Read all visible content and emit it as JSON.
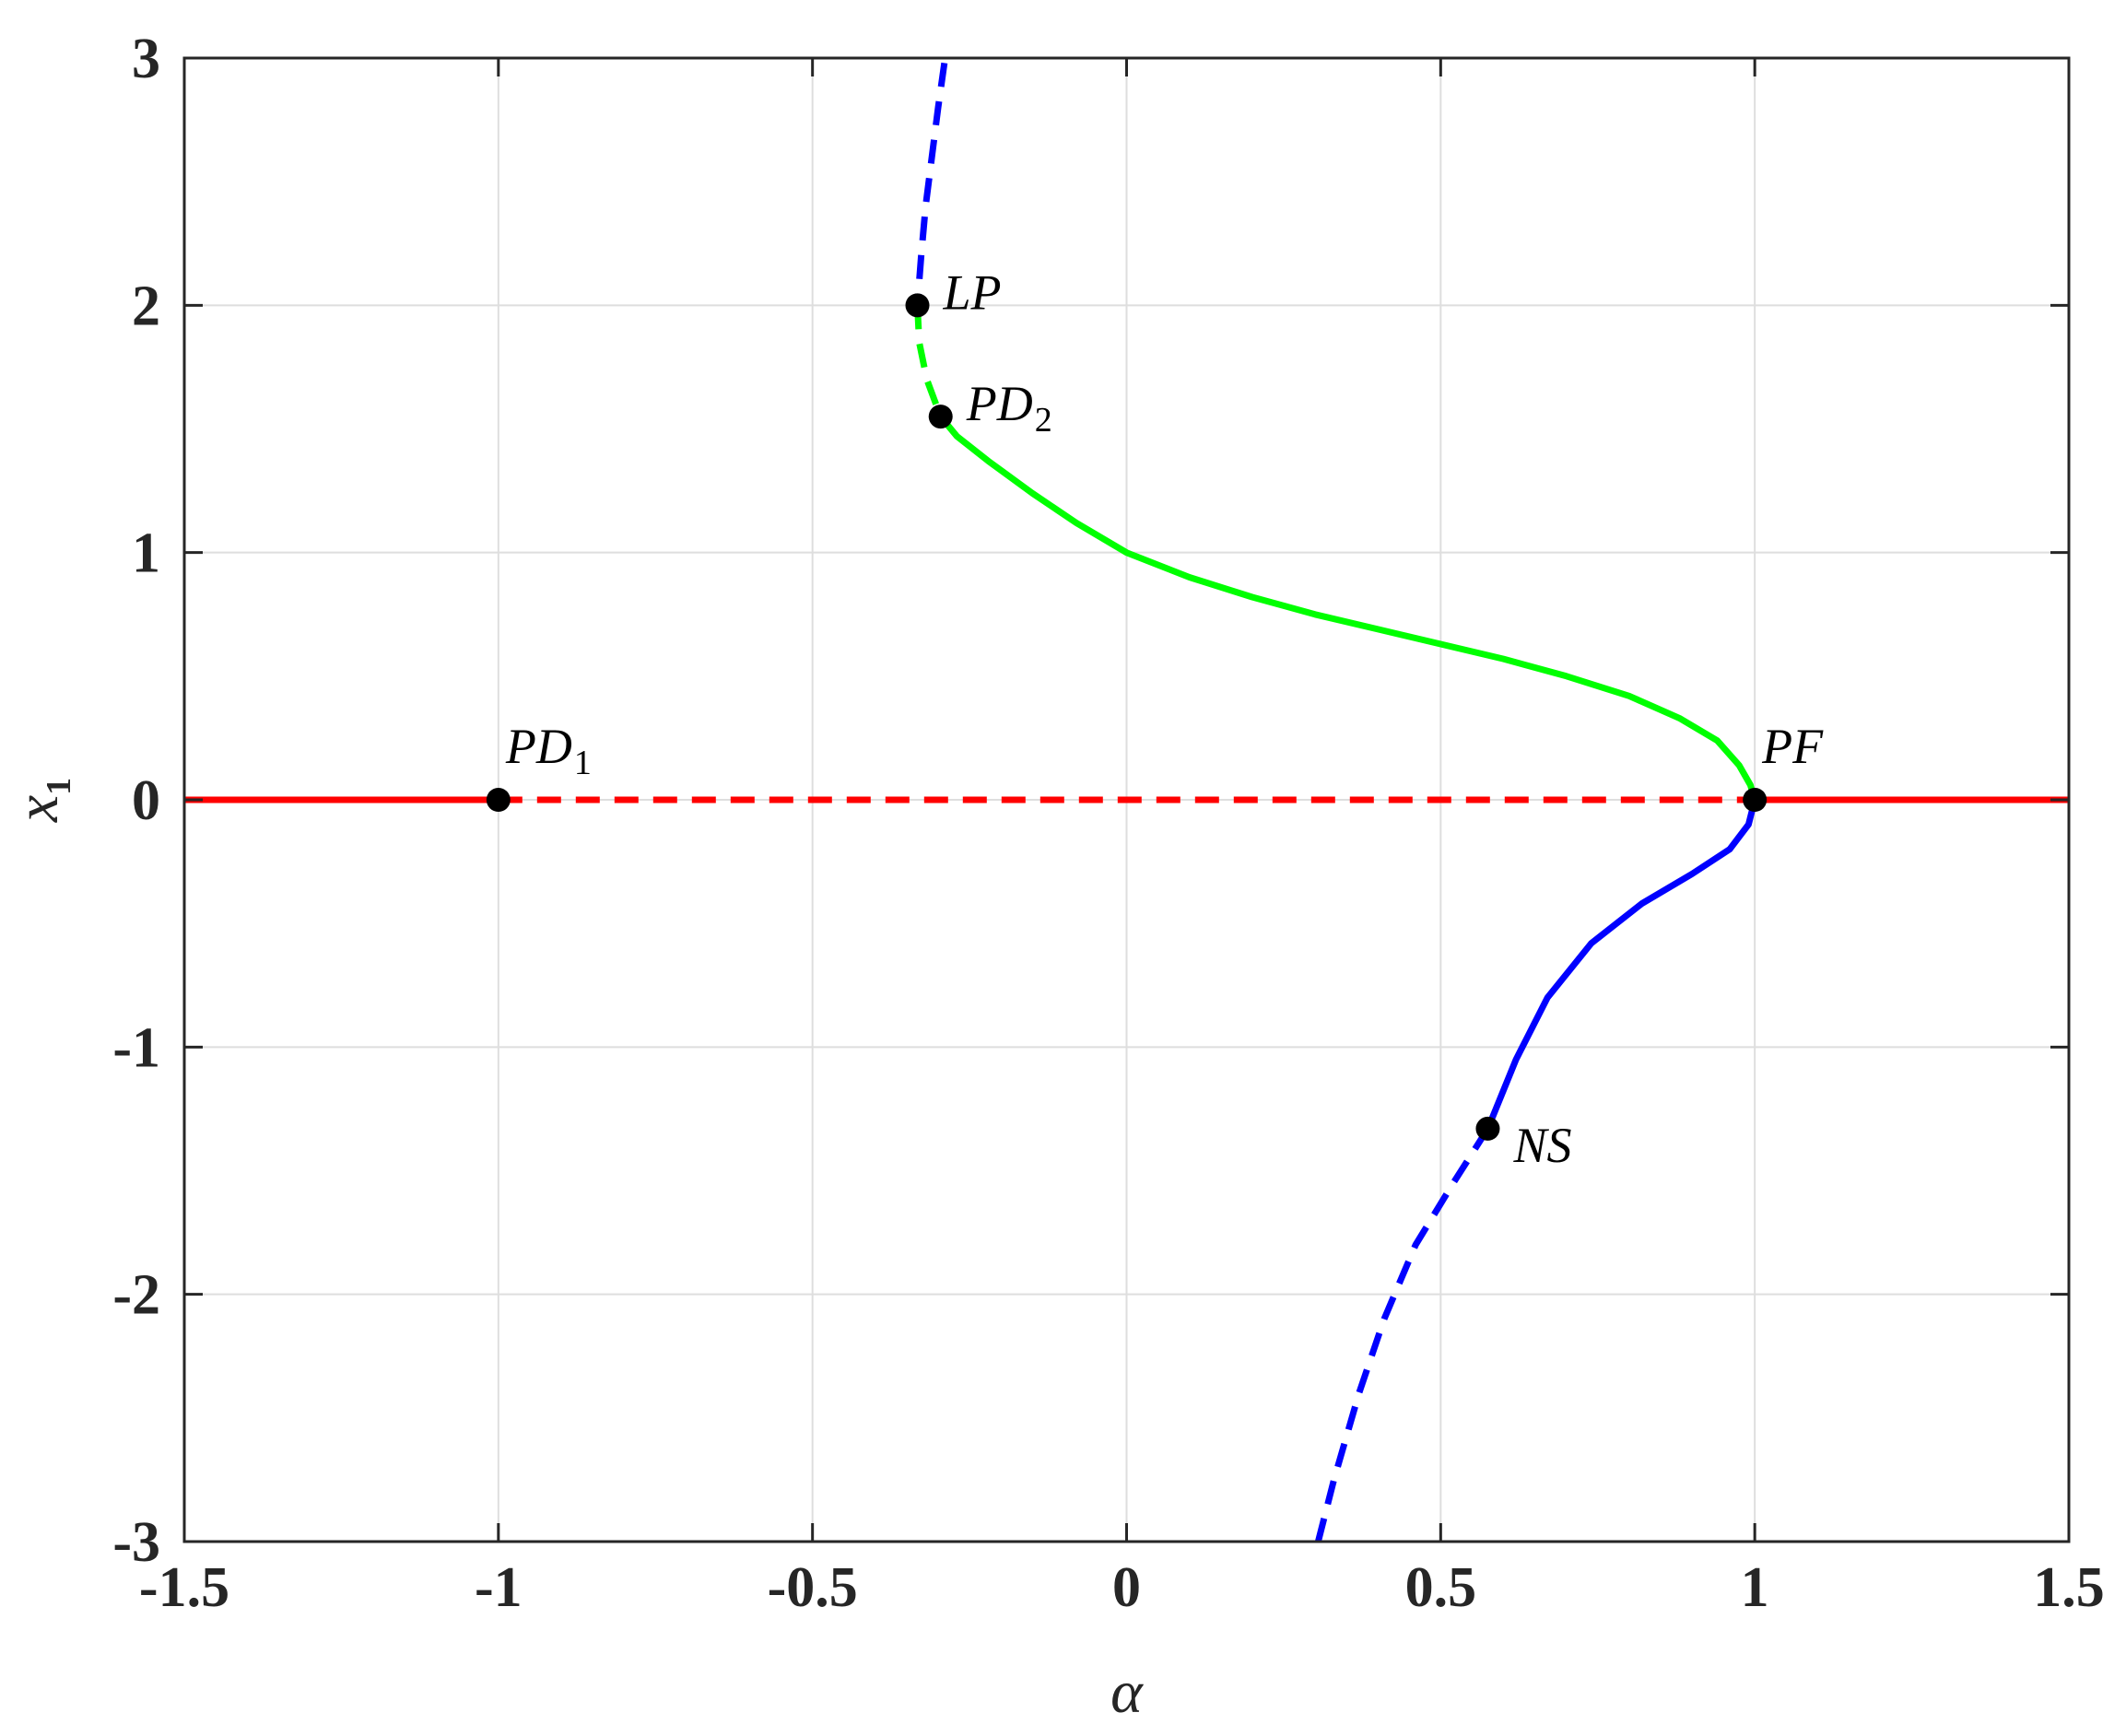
{
  "chart_data": {
    "type": "line",
    "title": "",
    "xlabel": "α",
    "ylabel": "x",
    "ylabel_subscript": "1",
    "xlim": [
      -1.5,
      1.5
    ],
    "ylim": [
      -3,
      3
    ],
    "xticks": [
      -1.5,
      -1,
      -0.5,
      0,
      0.5,
      1,
      1.5
    ],
    "yticks": [
      -3,
      -2,
      -1,
      0,
      1,
      2,
      3
    ],
    "xtick_labels": [
      "-1.5",
      "-1",
      "-0.5",
      "0",
      "0.5",
      "1",
      "1.5"
    ],
    "ytick_labels": [
      "-3",
      "-2",
      "-1",
      "0",
      "1",
      "2",
      "3"
    ],
    "grid": true,
    "colors": {
      "red": "#ff0000",
      "green": "#00ff00",
      "blue": "#0000ff",
      "point": "#000000",
      "grid": "#dedede",
      "axis": "#262626"
    },
    "series": [
      {
        "color": "red",
        "style": "solid",
        "points": [
          [
            -1.5,
            0
          ],
          [
            -1,
            0
          ]
        ]
      },
      {
        "color": "red",
        "style": "dashed",
        "points": [
          [
            -1,
            0
          ],
          [
            1,
            0
          ]
        ]
      },
      {
        "color": "red",
        "style": "solid",
        "points": [
          [
            1,
            0
          ],
          [
            1.5,
            0
          ]
        ]
      },
      {
        "color": "blue",
        "style": "dashed",
        "points": [
          [
            -0.29,
            2.98
          ],
          [
            -0.3,
            2.8
          ],
          [
            -0.31,
            2.6
          ],
          [
            -0.32,
            2.4
          ],
          [
            -0.327,
            2.2
          ],
          [
            -0.333,
            2.0
          ]
        ]
      },
      {
        "color": "green",
        "style": "dashed",
        "points": [
          [
            -0.333,
            2.0
          ],
          [
            -0.33,
            1.85
          ],
          [
            -0.318,
            1.7
          ],
          [
            -0.296,
            1.55
          ]
        ]
      },
      {
        "color": "green",
        "style": "solid",
        "points": [
          [
            -0.296,
            1.55
          ],
          [
            -0.27,
            1.47
          ],
          [
            -0.22,
            1.37
          ],
          [
            -0.15,
            1.24
          ],
          [
            -0.08,
            1.12
          ],
          [
            0.0,
            1.0
          ],
          [
            0.1,
            0.9
          ],
          [
            0.2,
            0.82
          ],
          [
            0.3,
            0.75
          ],
          [
            0.4,
            0.69
          ],
          [
            0.5,
            0.63
          ],
          [
            0.6,
            0.57
          ],
          [
            0.7,
            0.5
          ],
          [
            0.8,
            0.42
          ],
          [
            0.88,
            0.33
          ],
          [
            0.94,
            0.24
          ],
          [
            0.975,
            0.14
          ],
          [
            0.993,
            0.06
          ],
          [
            1.0,
            0.0
          ]
        ]
      },
      {
        "color": "blue",
        "style": "solid",
        "points": [
          [
            1.0,
            0.0
          ],
          [
            0.99,
            -0.1
          ],
          [
            0.96,
            -0.2
          ],
          [
            0.9,
            -0.3
          ],
          [
            0.82,
            -0.42
          ],
          [
            0.74,
            -0.58
          ],
          [
            0.67,
            -0.8
          ],
          [
            0.62,
            -1.05
          ],
          [
            0.575,
            -1.33
          ]
        ]
      },
      {
        "color": "blue",
        "style": "dashed",
        "points": [
          [
            0.575,
            -1.33
          ],
          [
            0.52,
            -1.55
          ],
          [
            0.46,
            -1.8
          ],
          [
            0.41,
            -2.1
          ],
          [
            0.37,
            -2.4
          ],
          [
            0.33,
            -2.75
          ],
          [
            0.305,
            -3.0
          ]
        ]
      }
    ],
    "special_points": [
      {
        "label": "LP",
        "main": "LP",
        "sub": "",
        "x": -0.333,
        "y": 2.0,
        "anchor": "right"
      },
      {
        "label": "PD2",
        "main": "PD",
        "sub": "2",
        "x": -0.296,
        "y": 1.55,
        "anchor": "right"
      },
      {
        "label": "PD1",
        "main": "PD",
        "sub": "1",
        "x": -1.0,
        "y": 0.0,
        "anchor": "above"
      },
      {
        "label": "PF",
        "main": "PF",
        "sub": "",
        "x": 1.0,
        "y": 0.0,
        "anchor": "above"
      },
      {
        "label": "NS",
        "main": "NS",
        "sub": "",
        "x": 0.575,
        "y": -1.33,
        "anchor": "below-right"
      }
    ]
  }
}
